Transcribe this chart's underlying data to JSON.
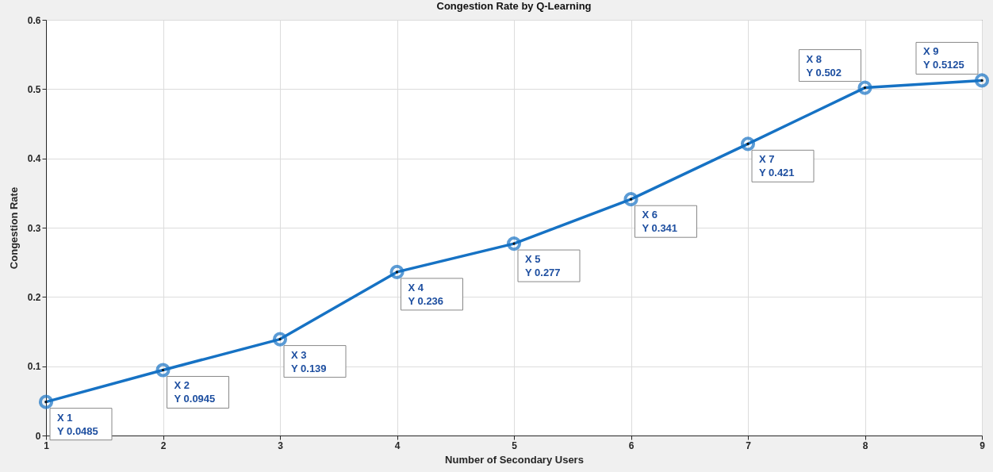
{
  "chart_data": {
    "type": "line",
    "title": "Congestion Rate by Q-Learning",
    "xlabel": "Number of Secondary Users",
    "ylabel": "Congestion Rate",
    "x": [
      1,
      2,
      3,
      4,
      5,
      6,
      7,
      8,
      9
    ],
    "series": [
      {
        "color": "#1672c4",
        "values": [
          0.0485,
          0.0945,
          0.139,
          0.236,
          0.277,
          0.341,
          0.421,
          0.502,
          0.5125
        ]
      }
    ],
    "xlim": [
      1,
      9
    ],
    "xticks": [
      1,
      2,
      3,
      4,
      5,
      6,
      7,
      8,
      9
    ],
    "ylim": [
      0,
      0.6
    ],
    "yticks": [
      0,
      0.1,
      0.2,
      0.3,
      0.4,
      0.5,
      0.6
    ],
    "grid": true,
    "marker": "circle",
    "line_style": "solid",
    "annotations": [
      {
        "text": "X 1\nY 0.0485",
        "x": 1,
        "y": 0.0485
      },
      {
        "text": "X 2\nY 0.0945",
        "x": 2,
        "y": 0.0945
      },
      {
        "text": "X 3\nY 0.139",
        "x": 3,
        "y": 0.139
      },
      {
        "text": "X 4\nY 0.236",
        "x": 4,
        "y": 0.236
      },
      {
        "text": "X 5\nY 0.277",
        "x": 5,
        "y": 0.277
      },
      {
        "text": "X 6\nY 0.341",
        "x": 6,
        "y": 0.341
      },
      {
        "text": "X 7\nY 0.421",
        "x": 7,
        "y": 0.421
      },
      {
        "text": "X 8\nY 0.502",
        "x": 8,
        "y": 0.502
      },
      {
        "text": "X 9\nY 0.5125",
        "x": 9,
        "y": 0.5125
      }
    ]
  }
}
